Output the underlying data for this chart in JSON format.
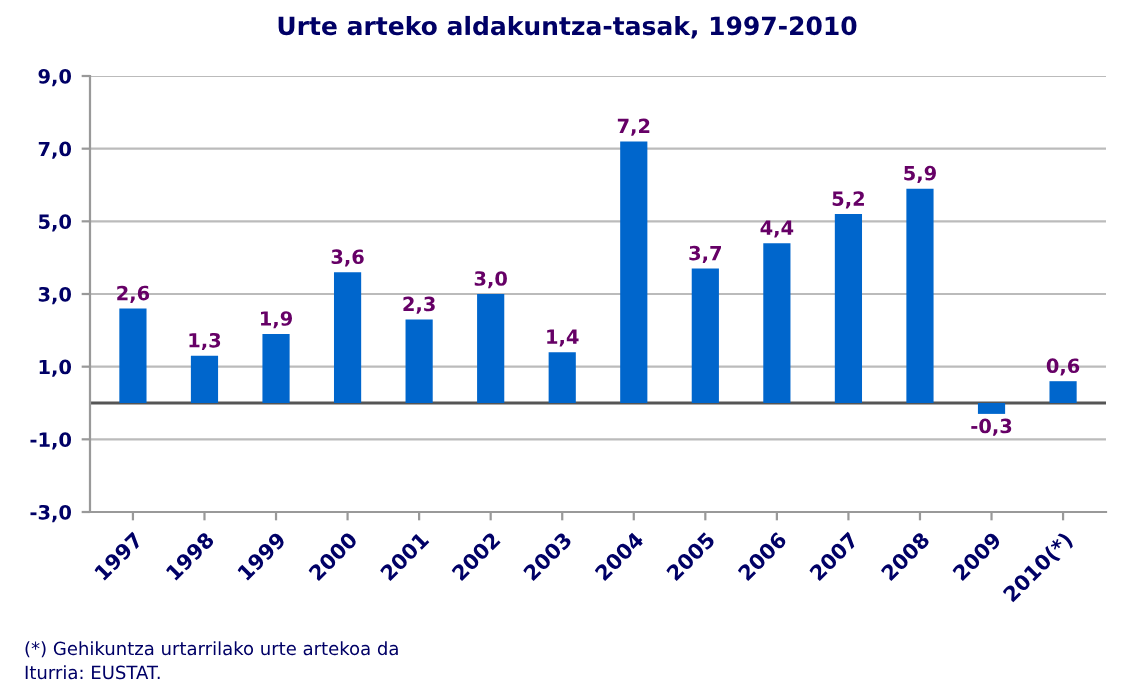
{
  "chart_data": {
    "type": "bar",
    "title": "Urte arteko aldakuntza-tasak, 1997-2010",
    "categories": [
      "1997",
      "1998",
      "1999",
      "2000",
      "2001",
      "2002",
      "2003",
      "2004",
      "2005",
      "2006",
      "2007",
      "2008",
      "2009",
      "2010(*)"
    ],
    "values": [
      2.6,
      1.3,
      1.9,
      3.6,
      2.3,
      3.0,
      1.4,
      7.2,
      3.7,
      4.4,
      5.2,
      5.9,
      -0.3,
      0.6
    ],
    "value_labels": [
      "2,6",
      "1,3",
      "1,9",
      "3,6",
      "2,3",
      "3,0",
      "1,4",
      "7,2",
      "3,7",
      "4,4",
      "5,2",
      "5,9",
      "-0,3",
      "0,6"
    ],
    "color": "#0066cc",
    "ylim": [
      -3,
      9
    ],
    "yticks": [
      {
        "value": -3,
        "label": "-3,0"
      },
      {
        "value": -1,
        "label": "-1,0"
      },
      {
        "value": 1,
        "label": "1,0"
      },
      {
        "value": 3,
        "label": "3,0"
      },
      {
        "value": 5,
        "label": "5,0"
      },
      {
        "value": 7,
        "label": "7,0"
      },
      {
        "value": 9,
        "label": "9,0"
      }
    ],
    "grid": "y",
    "ref_lines": [
      {
        "axis": "y",
        "value": 0,
        "label": null,
        "color": "#555555"
      }
    ],
    "annotations": [
      "(*) Gehikuntza urtarrilako urte artekoa da",
      "Iturria: EUSTAT."
    ]
  }
}
